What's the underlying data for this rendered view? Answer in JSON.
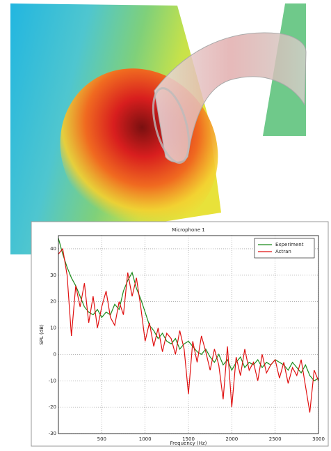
{
  "chart_data": {
    "type": "line",
    "title": "Microphone 1",
    "xlabel": "Frequency (Hz)",
    "ylabel": "SPL (dB)",
    "x": [
      0,
      50,
      100,
      150,
      200,
      250,
      300,
      350,
      400,
      450,
      500,
      550,
      600,
      650,
      700,
      750,
      800,
      850,
      900,
      950,
      1000,
      1050,
      1100,
      1150,
      1200,
      1250,
      1300,
      1350,
      1400,
      1450,
      1500,
      1550,
      1600,
      1650,
      1700,
      1750,
      1800,
      1850,
      1900,
      1950,
      2000,
      2050,
      2100,
      2150,
      2200,
      2250,
      2300,
      2350,
      2400,
      2450,
      2500,
      2550,
      2600,
      2650,
      2700,
      2750,
      2800,
      2850,
      2900,
      2950,
      3000
    ],
    "series": [
      {
        "name": "Experiment",
        "color": "#1a8a1a",
        "values": [
          44,
          38,
          33,
          29,
          26,
          22,
          18,
          16,
          15,
          17,
          14,
          16,
          15,
          19,
          17,
          24,
          28,
          31,
          25,
          21,
          16,
          11,
          9,
          6,
          8,
          5,
          4,
          6,
          2,
          4,
          5,
          3,
          1,
          0,
          2,
          -1,
          -3,
          0,
          -4,
          -2,
          -6,
          -3,
          -1,
          -5,
          -3,
          -4,
          -2,
          -5,
          -3,
          -4,
          -2,
          -3,
          -4,
          -6,
          -3,
          -5,
          -7,
          -4,
          -8,
          -10,
          -9
        ]
      },
      {
        "name": "Actran",
        "color": "#e01010",
        "values": [
          38,
          40,
          30,
          7,
          26,
          18,
          27,
          12,
          22,
          10,
          18,
          24,
          14,
          11,
          20,
          15,
          31,
          22,
          29,
          18,
          5,
          12,
          3,
          10,
          1,
          8,
          6,
          0,
          9,
          2,
          -15,
          5,
          -3,
          7,
          1,
          -6,
          2,
          -4,
          -17,
          3,
          -20,
          -1,
          -8,
          2,
          -6,
          -3,
          -10,
          0,
          -7,
          -4,
          -2,
          -9,
          -3,
          -11,
          -5,
          -8,
          -2,
          -12,
          -22,
          -6,
          -10
        ]
      }
    ],
    "xlim": [
      0,
      3000
    ],
    "xticks": [
      500,
      1000,
      1500,
      2000,
      2500,
      3000
    ],
    "ylim": [
      -30,
      45
    ],
    "yticks": [
      -30,
      -20,
      -10,
      0,
      10,
      20,
      30,
      40
    ],
    "grid": true,
    "legend": "upper right"
  }
}
